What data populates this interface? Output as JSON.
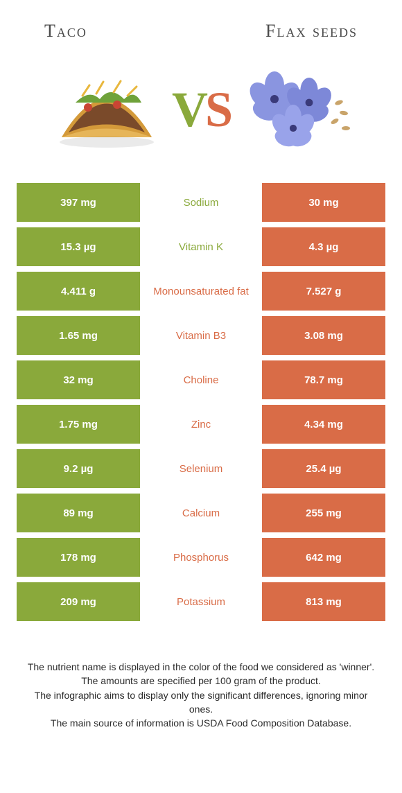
{
  "colors": {
    "green": "#8aa93b",
    "orange": "#d96c47",
    "text": "#333333",
    "bg": "#ffffff"
  },
  "header": {
    "left_title": "Taco",
    "right_title": "Flax seeds",
    "vs_v": "V",
    "vs_s": "S"
  },
  "rows": [
    {
      "left": "397 mg",
      "label": "Sodium",
      "right": "30 mg",
      "winner": "left"
    },
    {
      "left": "15.3 µg",
      "label": "Vitamin K",
      "right": "4.3 µg",
      "winner": "left"
    },
    {
      "left": "4.411 g",
      "label": "Monounsaturated fat",
      "right": "7.527 g",
      "winner": "right"
    },
    {
      "left": "1.65 mg",
      "label": "Vitamin B3",
      "right": "3.08 mg",
      "winner": "right"
    },
    {
      "left": "32 mg",
      "label": "Choline",
      "right": "78.7 mg",
      "winner": "right"
    },
    {
      "left": "1.75 mg",
      "label": "Zinc",
      "right": "4.34 mg",
      "winner": "right"
    },
    {
      "left": "9.2 µg",
      "label": "Selenium",
      "right": "25.4 µg",
      "winner": "right"
    },
    {
      "left": "89 mg",
      "label": "Calcium",
      "right": "255 mg",
      "winner": "right"
    },
    {
      "left": "178 mg",
      "label": "Phosphorus",
      "right": "642 mg",
      "winner": "right"
    },
    {
      "left": "209 mg",
      "label": "Potassium",
      "right": "813 mg",
      "winner": "right"
    }
  ],
  "footer": {
    "l1": "The nutrient name is displayed in the color of the food we considered as 'winner'.",
    "l2": "The amounts are specified per 100 gram of the product.",
    "l3": "The infographic aims to display only the significant differences, ignoring minor ones.",
    "l4": "The main source of information is USDA Food Composition Database."
  }
}
